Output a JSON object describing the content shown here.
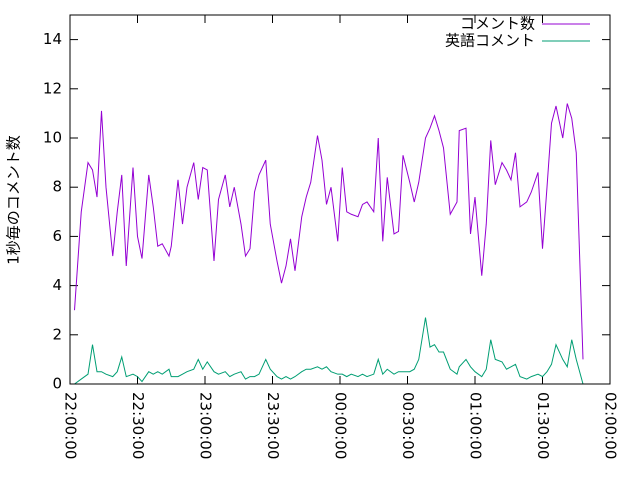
{
  "chart_data": {
    "type": "line",
    "ylabel": "1秒毎のコメント数",
    "x": [
      "22:02:00",
      "22:05:00",
      "22:08:00",
      "22:10:00",
      "22:12:00",
      "22:14:00",
      "22:16:00",
      "22:19:00",
      "22:21:00",
      "22:23:00",
      "22:25:00",
      "22:28:00",
      "22:30:00",
      "22:32:00",
      "22:35:00",
      "22:37:00",
      "22:39:00",
      "22:41:00",
      "22:44:00",
      "22:45:00",
      "22:48:00",
      "22:50:00",
      "22:52:00",
      "22:55:00",
      "22:57:00",
      "22:59:00",
      "23:01:00",
      "23:04:00",
      "23:06:00",
      "23:09:00",
      "23:11:00",
      "23:13:00",
      "23:16:00",
      "23:18:00",
      "23:20:00",
      "23:22:00",
      "23:24:00",
      "23:27:00",
      "23:29:00",
      "23:32:00",
      "23:34:00",
      "23:36:00",
      "23:38:00",
      "23:40:00",
      "23:43:00",
      "23:45:00",
      "23:47:00",
      "23:50:00",
      "23:52:00",
      "23:54:00",
      "23:56:00",
      "23:59:00",
      "00:01:00",
      "00:03:00",
      "00:05:00",
      "00:08:00",
      "00:10:00",
      "00:12:00",
      "00:15:00",
      "00:17:00",
      "00:19:00",
      "00:21:00",
      "00:24:00",
      "00:26:00",
      "00:28:00",
      "00:31:00",
      "00:33:00",
      "00:35:00",
      "00:38:00",
      "00:40:00",
      "00:42:00",
      "00:44:00",
      "00:46:00",
      "00:49:00",
      "00:52:00",
      "00:53:00",
      "00:56:00",
      "00:58:00",
      "01:00:00",
      "01:03:00",
      "01:05:00",
      "01:07:00",
      "01:09:00",
      "01:12:00",
      "01:14:00",
      "01:16:00",
      "01:18:00",
      "01:20:00",
      "01:23:00",
      "01:25:00",
      "01:28:00",
      "01:30:00",
      "01:32:00",
      "01:34:00",
      "01:36:00",
      "01:39:00",
      "01:41:00",
      "01:43:00",
      "01:45:00",
      "01:48:00"
    ],
    "series": [
      {
        "name": "コメント数",
        "color": "#9400d3",
        "values": [
          3.0,
          7.0,
          9.0,
          8.7,
          7.6,
          11.1,
          8.0,
          5.2,
          7.0,
          8.5,
          4.8,
          8.8,
          6.0,
          5.1,
          8.5,
          7.2,
          5.6,
          5.7,
          5.2,
          5.6,
          8.3,
          6.5,
          8.0,
          9.0,
          7.5,
          8.8,
          8.7,
          5.0,
          7.5,
          8.5,
          7.2,
          8.0,
          6.5,
          5.2,
          5.5,
          7.8,
          8.5,
          9.1,
          6.5,
          5.0,
          4.1,
          4.8,
          5.9,
          4.6,
          6.8,
          7.6,
          8.2,
          10.1,
          9.1,
          7.3,
          8.0,
          5.8,
          8.8,
          7.0,
          6.9,
          6.8,
          7.3,
          7.4,
          7.0,
          10.0,
          5.8,
          8.4,
          6.1,
          6.2,
          9.3,
          8.2,
          7.4,
          8.2,
          10.0,
          10.4,
          10.9,
          10.3,
          9.6,
          6.9,
          7.4,
          10.3,
          10.4,
          6.1,
          7.6,
          4.4,
          6.5,
          9.9,
          8.1,
          9.0,
          8.7,
          8.3,
          9.4,
          7.2,
          7.4,
          7.8,
          8.6,
          5.5,
          8.0,
          10.6,
          11.3,
          10.0,
          11.4,
          10.8,
          9.4,
          1.0
        ]
      },
      {
        "name": "英語コメント",
        "color": "#009e73",
        "values": [
          0,
          0.2,
          0.4,
          1.6,
          0.5,
          0.5,
          0.4,
          0.3,
          0.5,
          1.1,
          0.3,
          0.4,
          0.3,
          0.1,
          0.5,
          0.4,
          0.5,
          0.4,
          0.6,
          0.3,
          0.3,
          0.4,
          0.5,
          0.6,
          1.0,
          0.6,
          0.9,
          0.5,
          0.4,
          0.5,
          0.3,
          0.4,
          0.5,
          0.2,
          0.3,
          0.3,
          0.4,
          1.0,
          0.6,
          0.3,
          0.2,
          0.3,
          0.2,
          0.3,
          0.5,
          0.6,
          0.6,
          0.7,
          0.6,
          0.7,
          0.5,
          0.4,
          0.4,
          0.3,
          0.4,
          0.3,
          0.4,
          0.3,
          0.4,
          1.0,
          0.4,
          0.6,
          0.4,
          0.5,
          0.5,
          0.5,
          0.6,
          1.0,
          2.7,
          1.5,
          1.6,
          1.3,
          1.3,
          0.6,
          0.4,
          0.7,
          1.0,
          0.7,
          0.5,
          0.3,
          0.6,
          1.8,
          1.0,
          0.9,
          0.6,
          0.7,
          0.8,
          0.3,
          0.2,
          0.3,
          0.4,
          0.3,
          0.5,
          0.8,
          1.6,
          1.0,
          0.7,
          1.8,
          1.0,
          0
        ]
      }
    ],
    "xlim": [
      "22:00:00",
      "02:00:00"
    ],
    "xticks": [
      "22:00:00",
      "22:30:00",
      "23:00:00",
      "23:30:00",
      "00:00:00",
      "00:30:00",
      "01:00:00",
      "01:30:00",
      "02:00:00"
    ],
    "ylim": [
      0,
      15
    ],
    "yticks": [
      0,
      2,
      4,
      6,
      8,
      10,
      12,
      14
    ],
    "legend": "top-right"
  }
}
